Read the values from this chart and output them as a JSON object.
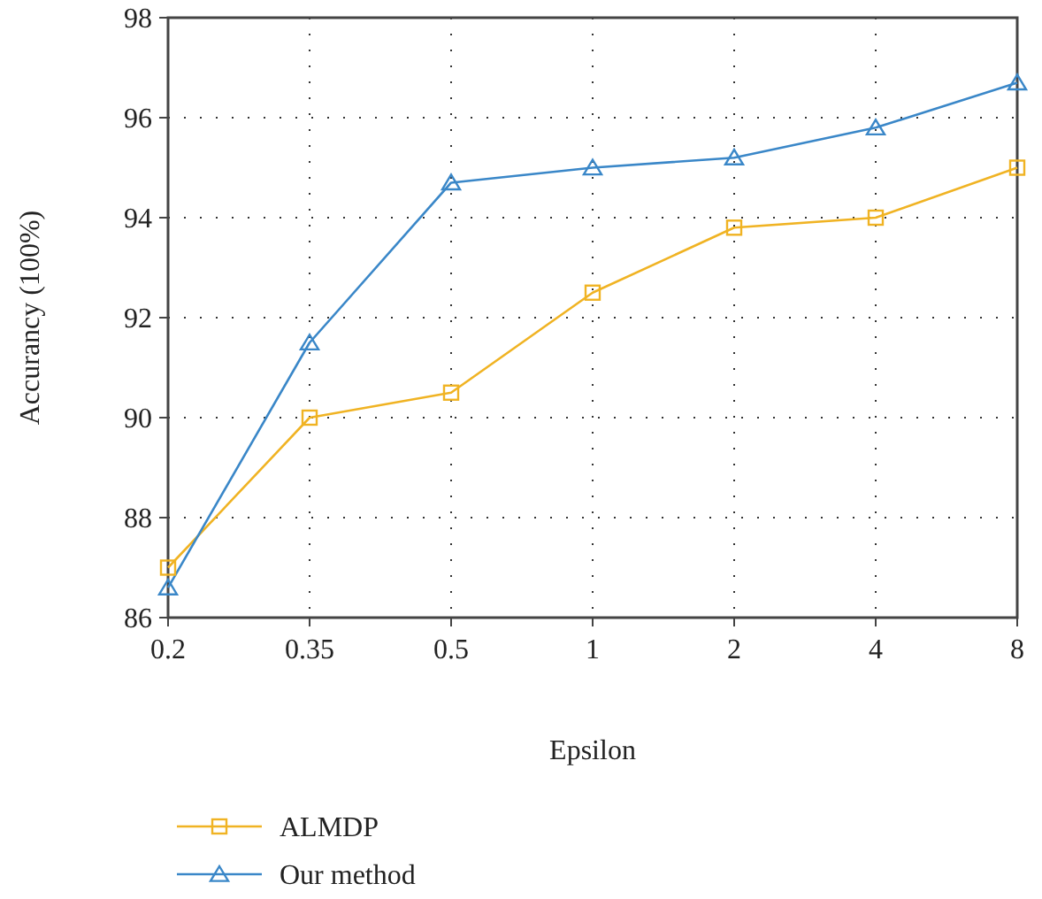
{
  "chart_data": {
    "type": "line",
    "xlabel": "Epsilon",
    "ylabel": "Accurancy (100%)",
    "categories": [
      "0.2",
      "0.35",
      "0.5",
      "1",
      "2",
      "4",
      "8"
    ],
    "series": [
      {
        "name": "ALMDP",
        "color": "#f0b323",
        "marker": "square",
        "values": [
          87.0,
          90.0,
          90.5,
          92.5,
          93.8,
          94.0,
          95.0
        ]
      },
      {
        "name": "Our method",
        "color": "#3a87c8",
        "marker": "triangle",
        "values": [
          86.6,
          91.5,
          94.7,
          95.0,
          95.2,
          95.8,
          96.7
        ]
      }
    ],
    "ylim": [
      86,
      98
    ],
    "yticks": [
      86,
      88,
      90,
      92,
      94,
      96,
      98
    ],
    "grid": true,
    "legend": "bottom",
    "line_style": "solid"
  }
}
